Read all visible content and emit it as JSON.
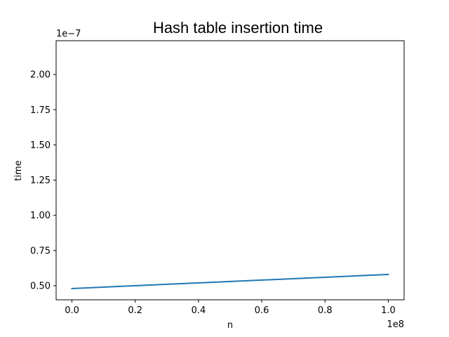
{
  "chart_data": {
    "type": "line",
    "title": "Hash table insertion time",
    "xlabel": "n",
    "ylabel": "time",
    "x_offset_label": "1e8",
    "y_offset_label": "1e−7",
    "x_scale": 100000000,
    "y_scale": 1e-07,
    "xlim": [
      -5000000,
      105000000
    ],
    "ylim": [
      4e-08,
      2.24e-07
    ],
    "x_ticks": [
      0,
      20000000,
      40000000,
      60000000,
      80000000,
      100000000
    ],
    "x_tick_labels": [
      "0.0",
      "0.2",
      "0.4",
      "0.6",
      "0.8",
      "1.0"
    ],
    "y_ticks": [
      5e-08,
      7.5e-08,
      1e-07,
      1.25e-07,
      1.5e-07,
      1.75e-07,
      2e-07
    ],
    "y_tick_labels": [
      "0.50",
      "0.75",
      "1.00",
      "1.25",
      "1.50",
      "1.75",
      "2.00"
    ],
    "grid": false,
    "series": [
      {
        "color": "#1f77b4",
        "x": [
          0,
          100000000
        ],
        "y": [
          4.8e-08,
          5.8e-08
        ]
      }
    ]
  }
}
